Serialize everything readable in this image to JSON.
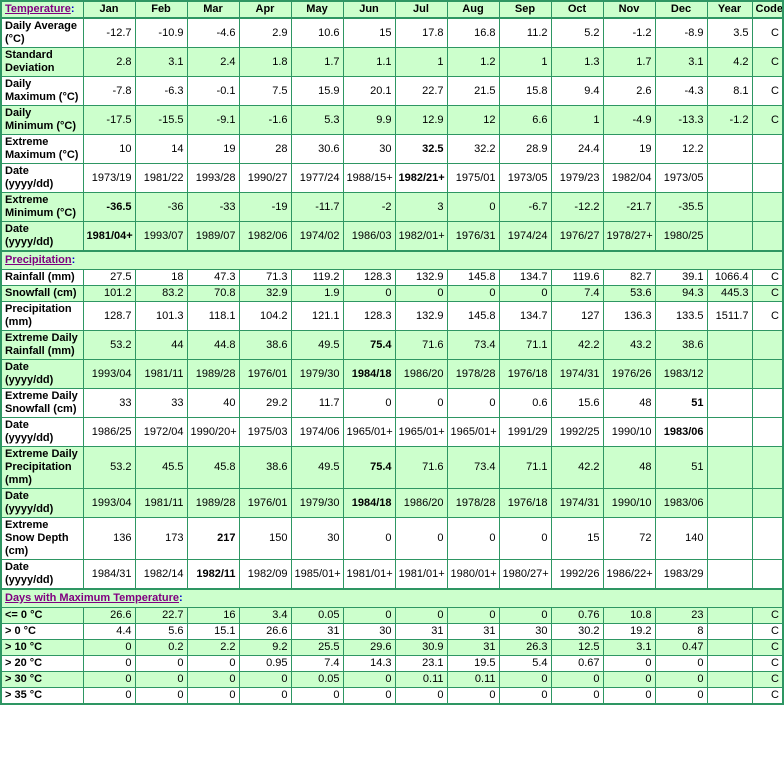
{
  "colors": {
    "row_shade_green": "#CCFFCC",
    "grid_border_green": "#2E9663",
    "row_label_blue": "#0000CC",
    "section_title_purple": "#800080",
    "data_text": "#000000"
  },
  "chart_data": {
    "type": "table",
    "columns": [
      "Jan",
      "Feb",
      "Mar",
      "Apr",
      "May",
      "Jun",
      "Jul",
      "Aug",
      "Sep",
      "Oct",
      "Nov",
      "Dec",
      "Year",
      "Code"
    ],
    "sections": [
      {
        "title": "Temperature",
        "title_suffix": ":",
        "title_in_header_row": true,
        "rows": [
          {
            "label": "Daily Average (°C)",
            "shade": false,
            "bold": [],
            "values": [
              "-12.7",
              "-10.9",
              "-4.6",
              "2.9",
              "10.6",
              "15",
              "17.8",
              "16.8",
              "11.2",
              "5.2",
              "-1.2",
              "-8.9",
              "3.5",
              "C"
            ]
          },
          {
            "label": "Standard Deviation",
            "shade": true,
            "bold": [],
            "values": [
              "2.8",
              "3.1",
              "2.4",
              "1.8",
              "1.7",
              "1.1",
              "1",
              "1.2",
              "1",
              "1.3",
              "1.7",
              "3.1",
              "4.2",
              "C"
            ]
          },
          {
            "label": "Daily Maximum (°C)",
            "shade": false,
            "bold": [],
            "values": [
              "-7.8",
              "-6.3",
              "-0.1",
              "7.5",
              "15.9",
              "20.1",
              "22.7",
              "21.5",
              "15.8",
              "9.4",
              "2.6",
              "-4.3",
              "8.1",
              "C"
            ]
          },
          {
            "label": "Daily Minimum (°C)",
            "shade": true,
            "bold": [],
            "values": [
              "-17.5",
              "-15.5",
              "-9.1",
              "-1.6",
              "5.3",
              "9.9",
              "12.9",
              "12",
              "6.6",
              "1",
              "-4.9",
              "-13.3",
              "-1.2",
              "C"
            ]
          },
          {
            "label": "Extreme Maximum (°C)",
            "shade": false,
            "bold": [
              6
            ],
            "values": [
              "10",
              "14",
              "19",
              "28",
              "30.6",
              "30",
              "32.5",
              "32.2",
              "28.9",
              "24.4",
              "19",
              "12.2",
              "",
              ""
            ]
          },
          {
            "label": "Date (yyyy/dd)",
            "shade": false,
            "bold": [
              6
            ],
            "values": [
              "1973/19",
              "1981/22",
              "1993/28",
              "1990/27",
              "1977/24",
              "1988/15+",
              "1982/21+",
              "1975/01",
              "1973/05",
              "1979/23",
              "1982/04",
              "1973/05",
              "",
              ""
            ]
          },
          {
            "label": "Extreme Minimum (°C)",
            "shade": true,
            "bold": [
              0
            ],
            "values": [
              "-36.5",
              "-36",
              "-33",
              "-19",
              "-11.7",
              "-2",
              "3",
              "0",
              "-6.7",
              "-12.2",
              "-21.7",
              "-35.5",
              "",
              ""
            ]
          },
          {
            "label": "Date (yyyy/dd)",
            "shade": true,
            "bold": [
              0
            ],
            "values": [
              "1981/04+",
              "1993/07",
              "1989/07",
              "1982/06",
              "1974/02",
              "1986/03",
              "1982/01+",
              "1976/31",
              "1974/24",
              "1976/27",
              "1978/27+",
              "1980/25",
              "",
              ""
            ]
          }
        ]
      },
      {
        "title": "Precipitation",
        "title_suffix": ":",
        "title_in_header_row": false,
        "rows": [
          {
            "label": "Rainfall (mm)",
            "shade": false,
            "bold": [],
            "values": [
              "27.5",
              "18",
              "47.3",
              "71.3",
              "119.2",
              "128.3",
              "132.9",
              "145.8",
              "134.7",
              "119.6",
              "82.7",
              "39.1",
              "1066.4",
              "C"
            ]
          },
          {
            "label": "Snowfall (cm)",
            "shade": true,
            "bold": [],
            "values": [
              "101.2",
              "83.2",
              "70.8",
              "32.9",
              "1.9",
              "0",
              "0",
              "0",
              "0",
              "7.4",
              "53.6",
              "94.3",
              "445.3",
              "C"
            ]
          },
          {
            "label": "Precipitation (mm)",
            "shade": false,
            "bold": [],
            "values": [
              "128.7",
              "101.3",
              "118.1",
              "104.2",
              "121.1",
              "128.3",
              "132.9",
              "145.8",
              "134.7",
              "127",
              "136.3",
              "133.5",
              "1511.7",
              "C"
            ]
          },
          {
            "label": "Extreme Daily Rainfall (mm)",
            "shade": true,
            "bold": [
              5
            ],
            "values": [
              "53.2",
              "44",
              "44.8",
              "38.6",
              "49.5",
              "75.4",
              "71.6",
              "73.4",
              "71.1",
              "42.2",
              "43.2",
              "38.6",
              "",
              ""
            ]
          },
          {
            "label": "Date (yyyy/dd)",
            "shade": true,
            "bold": [
              5
            ],
            "values": [
              "1993/04",
              "1981/11",
              "1989/28",
              "1976/01",
              "1979/30",
              "1984/18",
              "1986/20",
              "1978/28",
              "1976/18",
              "1974/31",
              "1976/26",
              "1983/12",
              "",
              ""
            ]
          },
          {
            "label": "Extreme Daily Snowfall (cm)",
            "shade": false,
            "bold": [
              11
            ],
            "values": [
              "33",
              "33",
              "40",
              "29.2",
              "11.7",
              "0",
              "0",
              "0",
              "0.6",
              "15.6",
              "48",
              "51",
              "",
              ""
            ]
          },
          {
            "label": "Date (yyyy/dd)",
            "shade": false,
            "bold": [
              11
            ],
            "values": [
              "1986/25",
              "1972/04",
              "1990/20+",
              "1975/03",
              "1974/06",
              "1965/01+",
              "1965/01+",
              "1965/01+",
              "1991/29",
              "1992/25",
              "1990/10",
              "1983/06",
              "",
              ""
            ]
          },
          {
            "label": "Extreme Daily Precipitation (mm)",
            "shade": true,
            "bold": [
              5
            ],
            "values": [
              "53.2",
              "45.5",
              "45.8",
              "38.6",
              "49.5",
              "75.4",
              "71.6",
              "73.4",
              "71.1",
              "42.2",
              "48",
              "51",
              "",
              ""
            ]
          },
          {
            "label": "Date (yyyy/dd)",
            "shade": true,
            "bold": [
              5
            ],
            "values": [
              "1993/04",
              "1981/11",
              "1989/28",
              "1976/01",
              "1979/30",
              "1984/18",
              "1986/20",
              "1978/28",
              "1976/18",
              "1974/31",
              "1990/10",
              "1983/06",
              "",
              ""
            ]
          },
          {
            "label": "Extreme Snow Depth (cm)",
            "shade": false,
            "bold": [
              2
            ],
            "values": [
              "136",
              "173",
              "217",
              "150",
              "30",
              "0",
              "0",
              "0",
              "0",
              "15",
              "72",
              "140",
              "",
              ""
            ]
          },
          {
            "label": "Date (yyyy/dd)",
            "shade": false,
            "bold": [
              2
            ],
            "values": [
              "1984/31",
              "1982/14",
              "1982/11",
              "1982/09",
              "1985/01+",
              "1981/01+",
              "1981/01+",
              "1980/01+",
              "1980/27+",
              "1992/26",
              "1986/22+",
              "1983/29",
              "",
              ""
            ]
          }
        ]
      },
      {
        "title": "Days with Maximum Temperature",
        "title_suffix": ":",
        "title_in_header_row": false,
        "rows": [
          {
            "label": "<= 0 °C",
            "shade": true,
            "bold": [],
            "values": [
              "26.6",
              "22.7",
              "16",
              "3.4",
              "0.05",
              "0",
              "0",
              "0",
              "0",
              "0.76",
              "10.8",
              "23",
              "",
              "C"
            ]
          },
          {
            "label": "> 0 °C",
            "shade": false,
            "bold": [],
            "values": [
              "4.4",
              "5.6",
              "15.1",
              "26.6",
              "31",
              "30",
              "31",
              "31",
              "30",
              "30.2",
              "19.2",
              "8",
              "",
              "C"
            ]
          },
          {
            "label": "> 10 °C",
            "shade": true,
            "bold": [],
            "values": [
              "0",
              "0.2",
              "2.2",
              "9.2",
              "25.5",
              "29.6",
              "30.9",
              "31",
              "26.3",
              "12.5",
              "3.1",
              "0.47",
              "",
              "C"
            ]
          },
          {
            "label": "> 20 °C",
            "shade": false,
            "bold": [],
            "values": [
              "0",
              "0",
              "0",
              "0.95",
              "7.4",
              "14.3",
              "23.1",
              "19.5",
              "5.4",
              "0.67",
              "0",
              "0",
              "",
              "C"
            ]
          },
          {
            "label": "> 30 °C",
            "shade": true,
            "bold": [],
            "values": [
              "0",
              "0",
              "0",
              "0",
              "0.05",
              "0",
              "0.11",
              "0.11",
              "0",
              "0",
              "0",
              "0",
              "",
              "C"
            ]
          },
          {
            "label": "> 35 °C",
            "shade": false,
            "bold": [],
            "values": [
              "0",
              "0",
              "0",
              "0",
              "0",
              "0",
              "0",
              "0",
              "0",
              "0",
              "0",
              "0",
              "",
              "C"
            ]
          }
        ]
      }
    ]
  }
}
